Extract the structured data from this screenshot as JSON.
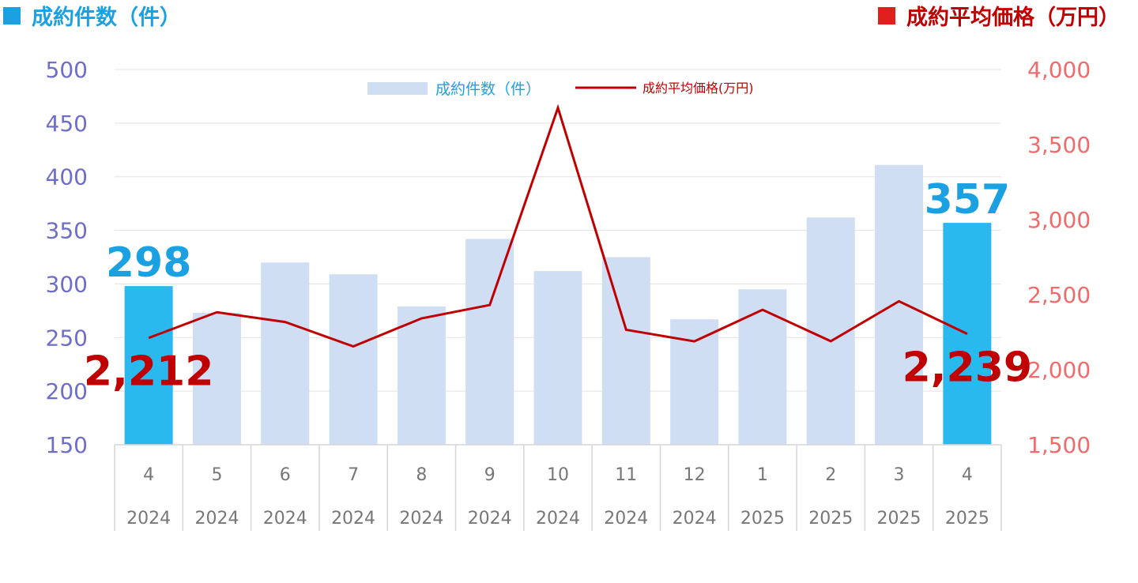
{
  "chart_data": {
    "type": "bar",
    "left_axis_title": "成約件数（件）",
    "right_axis_title": "成約平均価格（万円）",
    "categories": [
      {
        "month": "4",
        "year": "2024"
      },
      {
        "month": "5",
        "year": "2024"
      },
      {
        "month": "6",
        "year": "2024"
      },
      {
        "month": "7",
        "year": "2024"
      },
      {
        "month": "8",
        "year": "2024"
      },
      {
        "month": "9",
        "year": "2024"
      },
      {
        "month": "10",
        "year": "2024"
      },
      {
        "month": "11",
        "year": "2024"
      },
      {
        "month": "12",
        "year": "2024"
      },
      {
        "month": "1",
        "year": "2025"
      },
      {
        "month": "2",
        "year": "2025"
      },
      {
        "month": "3",
        "year": "2025"
      },
      {
        "month": "4",
        "year": "2025"
      }
    ],
    "series": [
      {
        "name": "成約件数（件）",
        "type": "bar",
        "axis": "left",
        "values": [
          298,
          273,
          320,
          309,
          279,
          342,
          312,
          325,
          267,
          295,
          362,
          411,
          357
        ],
        "highlight_indices": [
          0,
          12
        ],
        "color": "#cfdef3",
        "highlight_color": "#29b9ef"
      },
      {
        "name": "成約平均価格(万円)",
        "type": "line",
        "axis": "right",
        "values": [
          2212,
          2383,
          2318,
          2155,
          2342,
          2431,
          3745,
          2266,
          2189,
          2399,
          2190,
          2456,
          2239
        ],
        "color": "#c00000"
      }
    ],
    "data_labels": [
      {
        "series": 0,
        "index": 0,
        "text": "298"
      },
      {
        "series": 0,
        "index": 12,
        "text": "357"
      },
      {
        "series": 1,
        "index": 0,
        "text": "2,212"
      },
      {
        "series": 1,
        "index": 12,
        "text": "2,239"
      }
    ],
    "left_axis": {
      "min": 150,
      "max": 500,
      "ticks": [
        "500",
        "450",
        "400",
        "350",
        "300",
        "250",
        "200",
        "150"
      ],
      "color": "#6e6ec8"
    },
    "right_axis": {
      "min": 1500,
      "max": 4000,
      "ticks": [
        "4,000",
        "3,500",
        "3,000",
        "2,500",
        "2,000",
        "1,500"
      ],
      "color": "#f26b6b"
    },
    "grid": true,
    "legend": {
      "position": "top-center"
    }
  }
}
